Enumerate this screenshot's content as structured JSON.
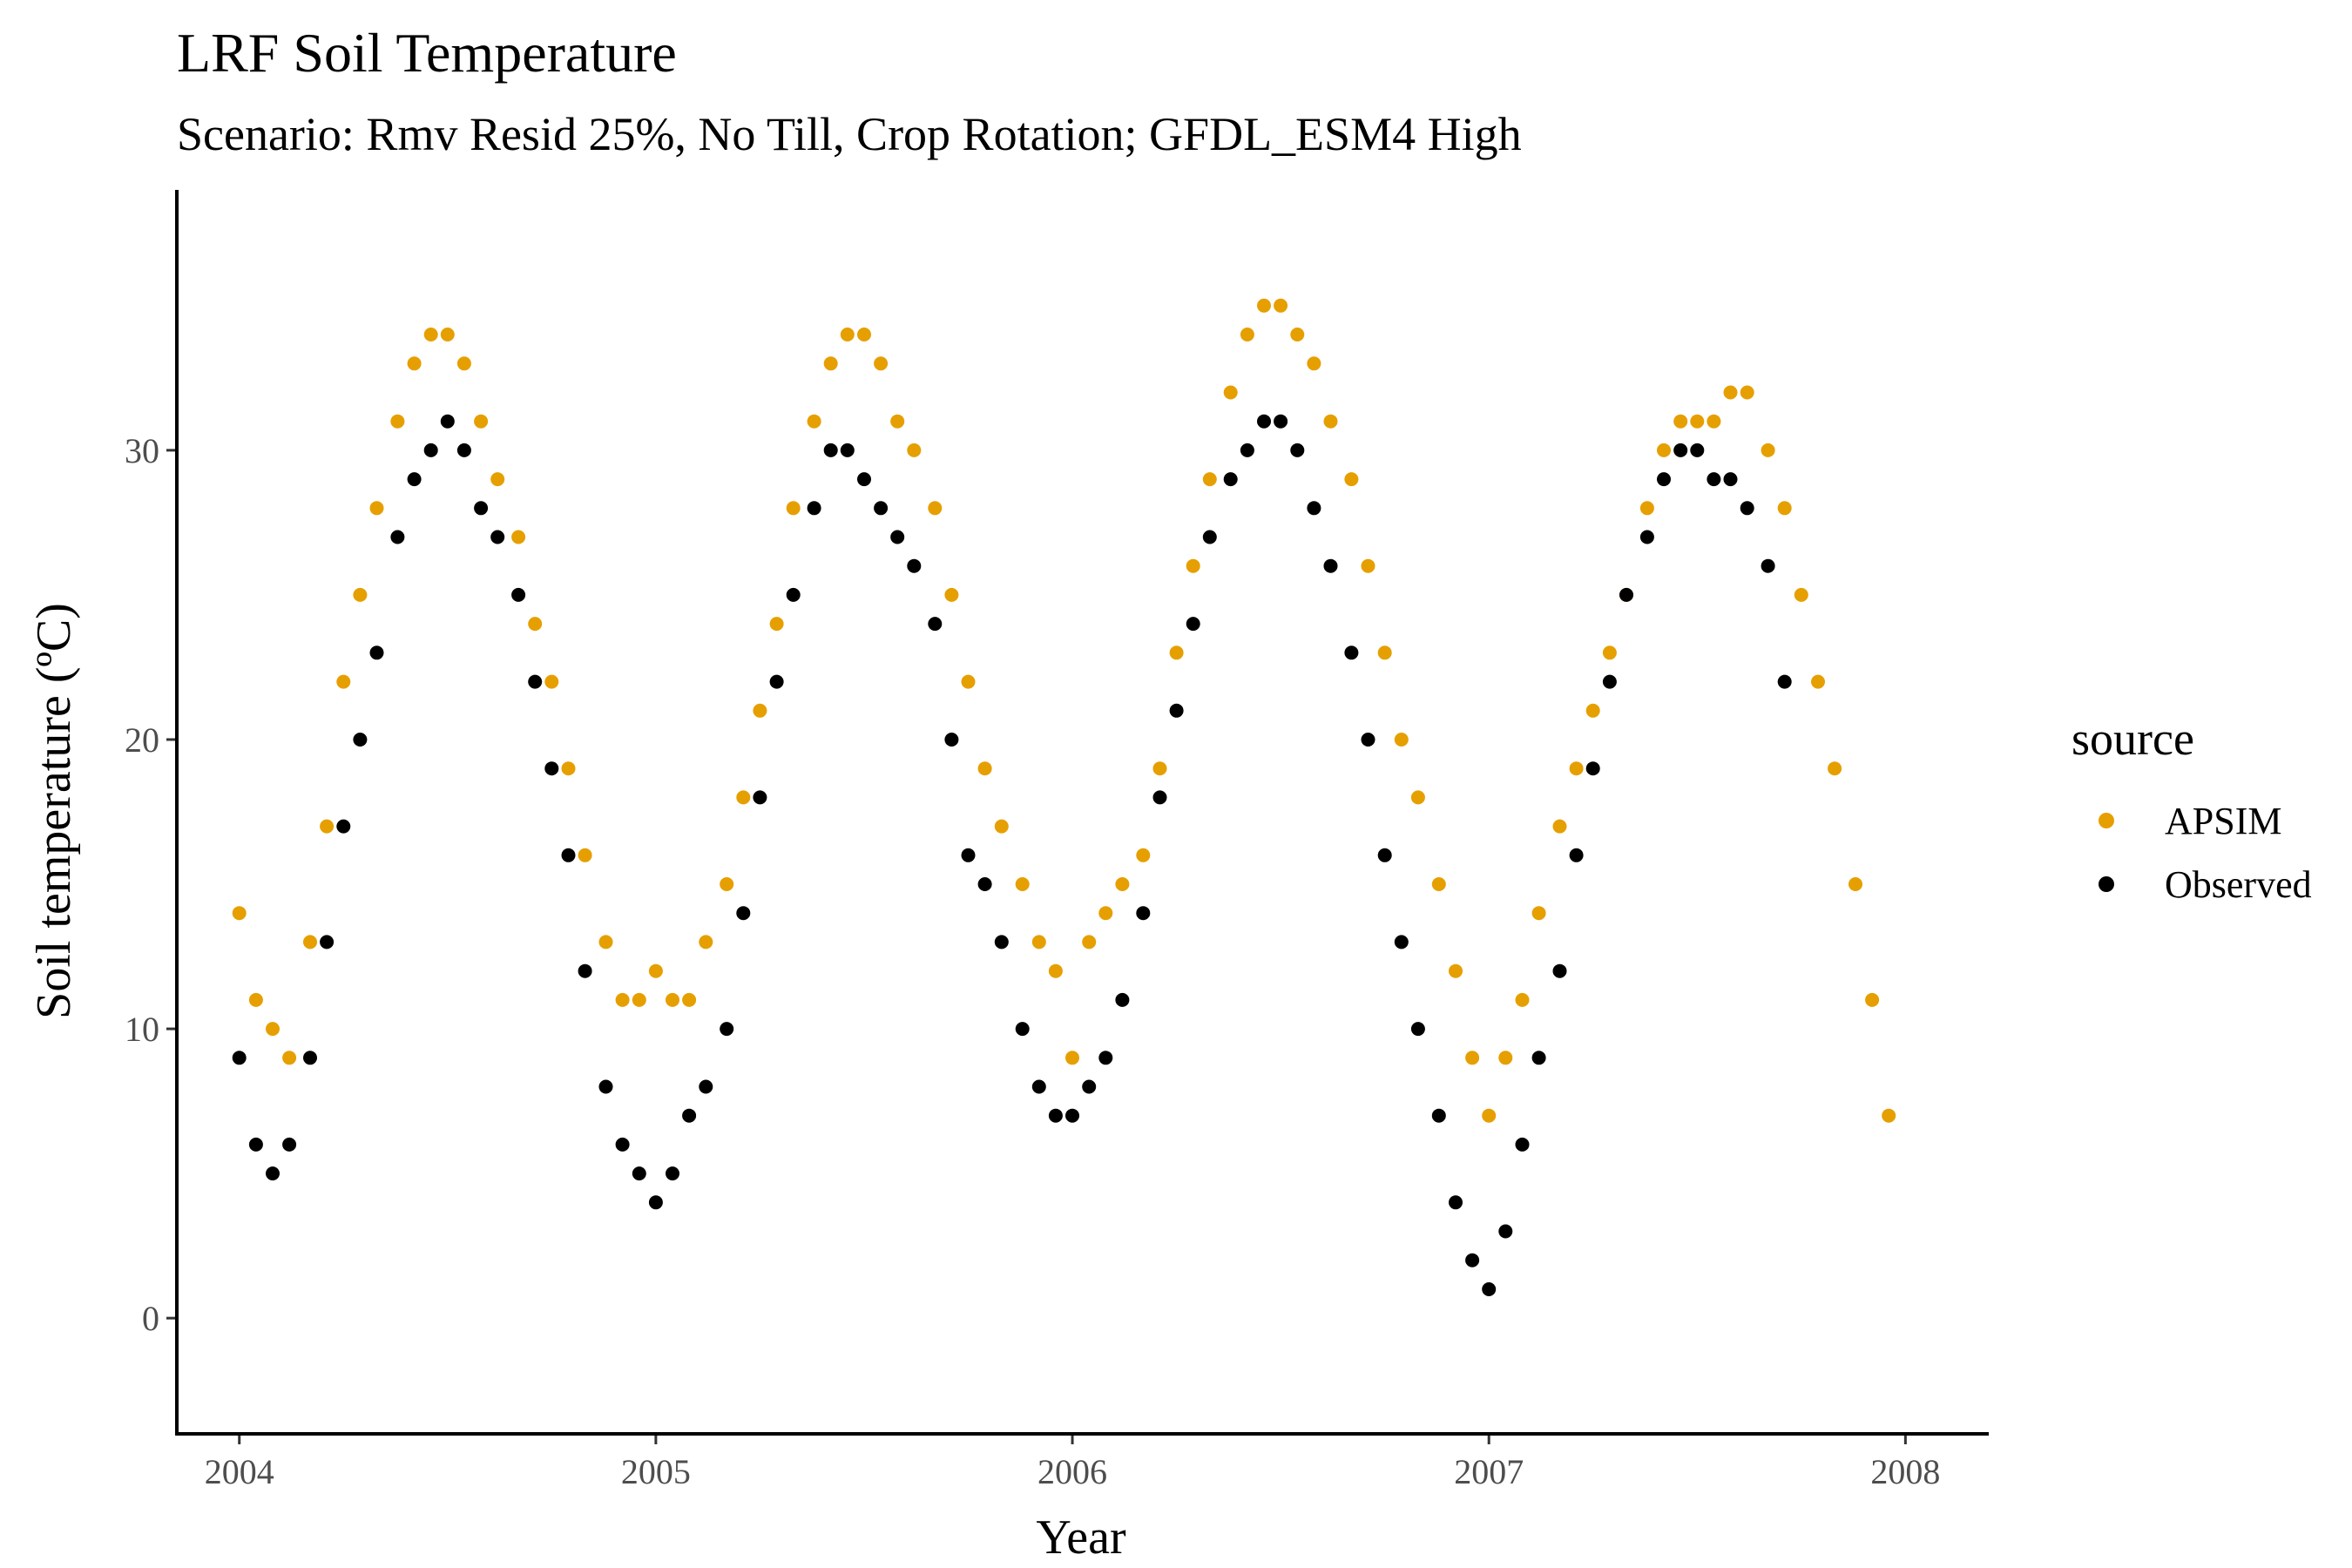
{
  "chart_data": {
    "type": "scatter",
    "title": "LRF Soil Temperature",
    "subtitle": "Scenario: Rmv Resid 25%, No Till, Crop Rotation; GFDL_ESM4 High",
    "xlabel": "Year",
    "ylabel": "Soil temperature (ºC)",
    "xlim": [
      2003.85,
      2008.2
    ],
    "ylim": [
      -4,
      39
    ],
    "xticks": [
      2004,
      2005,
      2006,
      2007,
      2008
    ],
    "xtick_labels": [
      "2004",
      "2005",
      "2006",
      "2007",
      "2008"
    ],
    "yticks": [
      0,
      10,
      20,
      30
    ],
    "ytick_labels": [
      "0",
      "10",
      "20",
      "30"
    ],
    "grid": false,
    "legend": {
      "title": "source",
      "placement": "right"
    },
    "series": [
      {
        "name": "APSIM",
        "color": "#E69F00",
        "x": [
          2004.0,
          2004.04,
          2004.08,
          2004.12,
          2004.17,
          2004.21,
          2004.25,
          2004.29,
          2004.33,
          2004.38,
          2004.42,
          2004.46,
          2004.5,
          2004.54,
          2004.58,
          2004.62,
          2004.67,
          2004.71,
          2004.75,
          2004.79,
          2004.83,
          2004.88,
          2004.92,
          2004.96,
          2005.0,
          2005.04,
          2005.08,
          2005.12,
          2005.17,
          2005.21,
          2005.25,
          2005.29,
          2005.33,
          2005.38,
          2005.42,
          2005.46,
          2005.5,
          2005.54,
          2005.58,
          2005.62,
          2005.67,
          2005.71,
          2005.75,
          2005.79,
          2005.83,
          2005.88,
          2005.92,
          2005.96,
          2006.0,
          2006.04,
          2006.08,
          2006.12,
          2006.17,
          2006.21,
          2006.25,
          2006.29,
          2006.33,
          2006.38,
          2006.42,
          2006.46,
          2006.5,
          2006.54,
          2006.58,
          2006.62,
          2006.67,
          2006.71,
          2006.75,
          2006.79,
          2006.83,
          2006.88,
          2006.92,
          2006.96,
          2007.0,
          2007.04,
          2007.08,
          2007.12,
          2007.17,
          2007.21,
          2007.25,
          2007.29,
          2007.33,
          2007.38,
          2007.42,
          2007.46,
          2007.5,
          2007.54,
          2007.58,
          2007.62,
          2007.67,
          2007.71,
          2007.75,
          2007.79,
          2007.83,
          2007.88,
          2007.92,
          2007.96
        ],
        "y": [
          14.0,
          11.0,
          10.0,
          9.0,
          13.0,
          17.0,
          22.0,
          25.0,
          28.0,
          31.0,
          33.0,
          34.0,
          34.0,
          33.0,
          31.0,
          29.0,
          27.0,
          24.0,
          22.0,
          19.0,
          16.0,
          13.0,
          11.0,
          11.0,
          12.0,
          11.0,
          11.0,
          13.0,
          15.0,
          18.0,
          21.0,
          24.0,
          28.0,
          31.0,
          33.0,
          34.0,
          34.0,
          33.0,
          31.0,
          30.0,
          28.0,
          25.0,
          22.0,
          19.0,
          17.0,
          15.0,
          13.0,
          12.0,
          9.0,
          13.0,
          14.0,
          15.0,
          16.0,
          19.0,
          23.0,
          26.0,
          29.0,
          32.0,
          34.0,
          35.0,
          35.0,
          34.0,
          33.0,
          31.0,
          29.0,
          26.0,
          23.0,
          20.0,
          18.0,
          15.0,
          12.0,
          9.0,
          7.0,
          9.0,
          11.0,
          14.0,
          17.0,
          19.0,
          21.0,
          23.0,
          25.0,
          28.0,
          30.0,
          31.0,
          31.0,
          31.0,
          32.0,
          32.0,
          30.0,
          28.0,
          25.0,
          22.0,
          19.0,
          15.0,
          11.0,
          7.0
        ]
      },
      {
        "name": "Observed",
        "color": "#000000",
        "x": [
          2004.0,
          2004.04,
          2004.08,
          2004.12,
          2004.17,
          2004.21,
          2004.25,
          2004.29,
          2004.33,
          2004.38,
          2004.42,
          2004.46,
          2004.5,
          2004.54,
          2004.58,
          2004.62,
          2004.67,
          2004.71,
          2004.75,
          2004.79,
          2004.83,
          2004.88,
          2004.92,
          2004.96,
          2005.0,
          2005.04,
          2005.08,
          2005.12,
          2005.17,
          2005.21,
          2005.25,
          2005.29,
          2005.33,
          2005.38,
          2005.42,
          2005.46,
          2005.5,
          2005.54,
          2005.58,
          2005.62,
          2005.67,
          2005.71,
          2005.75,
          2005.79,
          2005.83,
          2005.88,
          2005.92,
          2005.96,
          2006.0,
          2006.04,
          2006.08,
          2006.12,
          2006.17,
          2006.21,
          2006.25,
          2006.29,
          2006.33,
          2006.38,
          2006.42,
          2006.46,
          2006.5,
          2006.54,
          2006.58,
          2006.62,
          2006.67,
          2006.71,
          2006.75,
          2006.79,
          2006.83,
          2006.88,
          2006.92,
          2006.96,
          2007.0,
          2007.04,
          2007.08,
          2007.12,
          2007.17,
          2007.21,
          2007.25,
          2007.29,
          2007.33,
          2007.38,
          2007.42,
          2007.46,
          2007.5,
          2007.54,
          2007.58,
          2007.62,
          2007.67,
          2007.71
        ],
        "y": [
          9.0,
          6.0,
          5.0,
          6.0,
          9.0,
          13.0,
          17.0,
          20.0,
          23.0,
          27.0,
          29.0,
          30.0,
          31.0,
          30.0,
          28.0,
          27.0,
          25.0,
          22.0,
          19.0,
          16.0,
          12.0,
          8.0,
          6.0,
          5.0,
          4.0,
          5.0,
          7.0,
          8.0,
          10.0,
          14.0,
          18.0,
          22.0,
          25.0,
          28.0,
          30.0,
          30.0,
          29.0,
          28.0,
          27.0,
          26.0,
          24.0,
          20.0,
          16.0,
          15.0,
          13.0,
          10.0,
          8.0,
          7.0,
          7.0,
          8.0,
          9.0,
          11.0,
          14.0,
          18.0,
          21.0,
          24.0,
          27.0,
          29.0,
          30.0,
          31.0,
          31.0,
          30.0,
          28.0,
          26.0,
          23.0,
          20.0,
          16.0,
          13.0,
          10.0,
          7.0,
          4.0,
          2.0,
          1.0,
          3.0,
          6.0,
          9.0,
          12.0,
          16.0,
          19.0,
          22.0,
          25.0,
          27.0,
          29.0,
          30.0,
          30.0,
          29.0,
          29.0,
          28.0,
          26.0,
          22.0
        ]
      }
    ]
  }
}
